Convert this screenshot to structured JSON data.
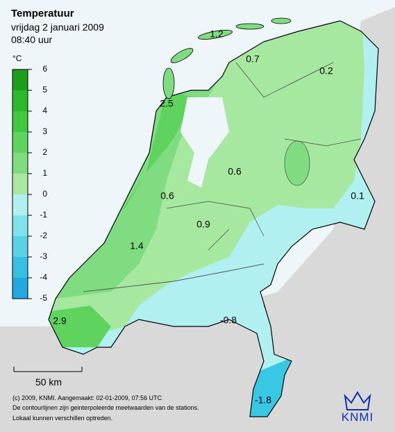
{
  "header": {
    "title": "Temperatuur",
    "date": "vrijdag 2 januari 2009",
    "time": "08:40 uur"
  },
  "legend": {
    "unit": "°C",
    "ticks": [
      6,
      5,
      4,
      3,
      2,
      1,
      0,
      -1,
      -2,
      -3,
      -4,
      -5
    ],
    "colors": [
      "#1d9e1d",
      "#2cb82c",
      "#40c840",
      "#5ed45e",
      "#80dc80",
      "#a8e8a0",
      "#b0f0f0",
      "#80e2ea",
      "#58d2e4",
      "#38c0e2",
      "#22a8e0"
    ]
  },
  "map": {
    "labels": [
      "1.2",
      "0.7",
      "0.2",
      "2.5",
      "0.6",
      "0.6",
      "0.1",
      "0.9",
      "1.4",
      "2.9",
      "-0.8",
      "-1.8"
    ]
  },
  "scale": {
    "label": "50 km"
  },
  "footer": {
    "lines": [
      "(c) 2009, KNMI. Aangemaakt: 02-01-2009, 07:56 UTC",
      "De contourlijnen zijn geinterpoleerde meetwaarden van de stations.",
      "Lokaal kunnen verschillen optreden."
    ],
    "logo": "KNMI"
  }
}
